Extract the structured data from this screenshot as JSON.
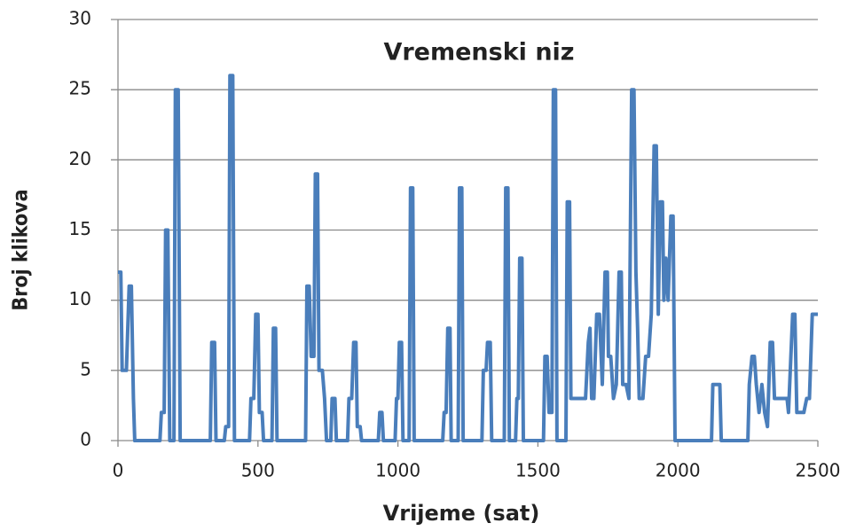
{
  "chart_data": {
    "type": "line",
    "title": "Vremenski niz",
    "xlabel": "Vrijeme (sat)",
    "ylabel": "Broj klikova",
    "xlim": [
      0,
      2500
    ],
    "xticks": [
      0,
      500,
      1000,
      1500,
      2000,
      2500
    ],
    "ylim": [
      0,
      30
    ],
    "yticks": [
      0,
      5,
      10,
      15,
      20,
      25,
      30
    ],
    "grid": true,
    "x": [
      0,
      10,
      15,
      30,
      40,
      48,
      55,
      60,
      150,
      155,
      165,
      170,
      178,
      185,
      200,
      205,
      215,
      222,
      330,
      335,
      345,
      350,
      380,
      385,
      395,
      400,
      410,
      416,
      470,
      475,
      485,
      492,
      500,
      505,
      515,
      520,
      550,
      555,
      563,
      568,
      670,
      675,
      683,
      690,
      700,
      705,
      713,
      718,
      730,
      738,
      745,
      760,
      765,
      775,
      780,
      820,
      825,
      835,
      842,
      850,
      855,
      865,
      870,
      930,
      935,
      943,
      948,
      990,
      995,
      1000,
      1005,
      1013,
      1018,
      1040,
      1045,
      1053,
      1058,
      1160,
      1165,
      1172,
      1178,
      1186,
      1190,
      1215,
      1220,
      1228,
      1233,
      1300,
      1305,
      1315,
      1320,
      1330,
      1335,
      1380,
      1385,
      1393,
      1398,
      1420,
      1425,
      1430,
      1435,
      1443,
      1448,
      1520,
      1525,
      1533,
      1540,
      1550,
      1555,
      1563,
      1568,
      1600,
      1605,
      1613,
      1618,
      1640,
      1650,
      1670,
      1680,
      1686,
      1692,
      1700,
      1710,
      1720,
      1730,
      1740,
      1748,
      1752,
      1760,
      1770,
      1780,
      1790,
      1798,
      1803,
      1815,
      1825,
      1835,
      1843,
      1850,
      1856,
      1862,
      1875,
      1885,
      1895,
      1905,
      1915,
      1923,
      1930,
      1937,
      1945,
      1950,
      1957,
      1965,
      1975,
      1983,
      1990,
      2120,
      2125,
      2150,
      2155,
      2250,
      2255,
      2265,
      2273,
      2280,
      2290,
      2300,
      2310,
      2320,
      2330,
      2338,
      2345,
      2390,
      2395,
      2410,
      2418,
      2425,
      2450,
      2460,
      2470,
      2480,
      2500
    ],
    "series": [
      {
        "color": "#4a7ebb",
        "values": [
          12,
          12,
          5,
          5,
          11,
          11,
          3,
          0,
          0,
          2,
          2,
          15,
          15,
          0,
          0,
          25,
          25,
          0,
          0,
          7,
          7,
          0,
          0,
          1,
          1,
          26,
          26,
          0,
          0,
          3,
          3,
          9,
          9,
          2,
          2,
          0,
          0,
          8,
          8,
          0,
          0,
          11,
          11,
          6,
          6,
          19,
          19,
          5,
          5,
          3,
          0,
          0,
          3,
          3,
          0,
          0,
          3,
          3,
          7,
          7,
          1,
          1,
          0,
          0,
          2,
          2,
          0,
          0,
          3,
          3,
          7,
          7,
          0,
          0,
          18,
          18,
          0,
          0,
          2,
          2,
          8,
          8,
          0,
          0,
          18,
          18,
          0,
          0,
          5,
          5,
          7,
          7,
          0,
          0,
          18,
          18,
          0,
          0,
          3,
          3,
          13,
          13,
          0,
          0,
          6,
          6,
          2,
          2,
          25,
          25,
          0,
          0,
          17,
          17,
          3,
          3,
          3,
          3,
          7,
          8,
          3,
          3,
          9,
          9,
          4,
          12,
          12,
          6,
          6,
          3,
          4,
          12,
          12,
          4,
          4,
          3,
          25,
          25,
          12,
          8,
          3,
          3,
          6,
          6,
          9,
          21,
          21,
          9,
          17,
          17,
          10,
          13,
          10,
          16,
          16,
          0,
          0,
          4,
          4,
          0,
          0,
          4,
          6,
          6,
          4,
          2,
          4,
          2,
          1,
          7,
          7,
          3,
          3,
          2,
          9,
          9,
          2,
          2,
          3,
          3,
          9,
          9
        ]
      }
    ]
  }
}
